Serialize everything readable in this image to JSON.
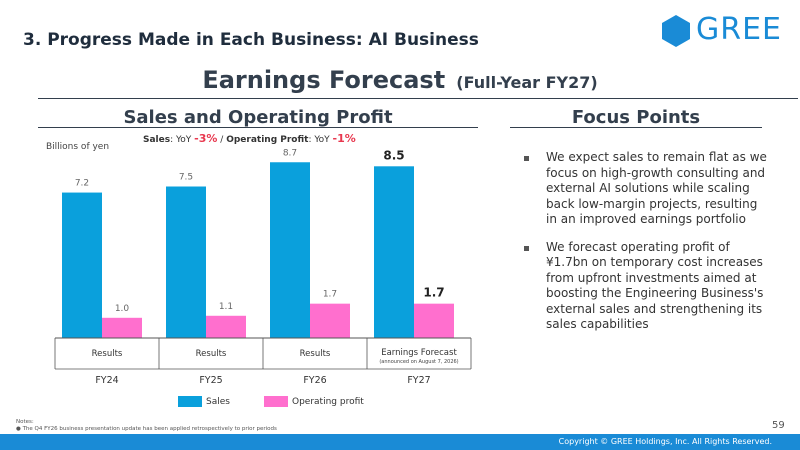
{
  "header": {
    "section_title": "3. Progress Made in Each Business: AI Business",
    "logo_text": "GREE",
    "title": "Earnings Forecast",
    "title_suffix": "(Full-Year FY27)"
  },
  "left_panel": {
    "heading": "Sales and Operating Profit",
    "yoy": {
      "sales_label": "Sales",
      "yoy_prefix": ": YoY ",
      "sales_value": "-3%",
      "separator": " / ",
      "op_label": "Operating Profit",
      "op_value": "-1%"
    },
    "unit": "Billions of yen"
  },
  "right_panel": {
    "heading": "Focus Points",
    "bullets": [
      "We expect sales to remain flat as we focus on high-growth consulting and external AI solutions while scaling back low-margin projects, resulting in an improved earnings portfolio",
      "We forecast operating profit of ¥1.7bn on temporary cost increases from upfront investments aimed at boosting the Engineering Business's external sales and strengthening its sales capabilities"
    ]
  },
  "chart_data": {
    "type": "bar",
    "categories": [
      "FY24",
      "FY25",
      "FY26",
      "FY27"
    ],
    "category_types": [
      "Results",
      "Results",
      "Results",
      "Earnings Forecast"
    ],
    "forecast_note": "(announced on August 7, 2026)",
    "series": [
      {
        "name": "Sales",
        "values": [
          7.2,
          7.5,
          8.7,
          8.5
        ],
        "color": "#0aa0dc"
      },
      {
        "name": "Operating profit",
        "values": [
          1.0,
          1.1,
          1.7,
          1.7
        ],
        "color": "#ff6fce"
      }
    ],
    "value_labels": {
      "Sales": [
        "7.2",
        "7.5",
        "8.7",
        "8.5"
      ],
      "Operating profit": [
        "1.0",
        "1.1",
        "1.7",
        "1.7"
      ]
    },
    "highlight_index": 3,
    "ylabel": "Billions of yen",
    "ylim": [
      0,
      9.0
    ],
    "legend_position": "bottom"
  },
  "notes": {
    "label": "Notes:",
    "line": "The Q4 FY26 business presentation update has been applied retrospectively to prior periods"
  },
  "footer": {
    "page_number": "59",
    "copyright": "Copyright © GREE Holdings, Inc. All Rights Reserved."
  },
  "colors": {
    "brand_blue": "#1a8bd6",
    "sales_bar": "#0aa0dc",
    "op_bar": "#ff6fce",
    "negative": "#e8384f"
  }
}
